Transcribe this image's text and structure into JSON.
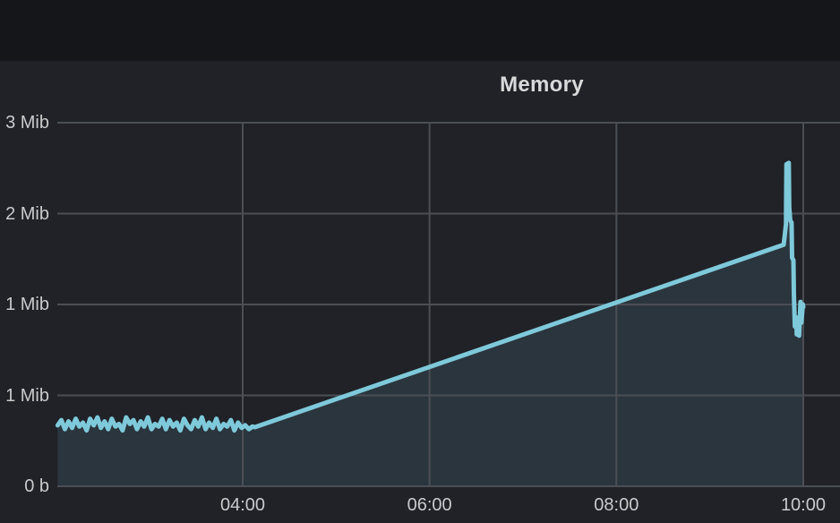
{
  "panel": {
    "title": "Memory"
  },
  "colors": {
    "topbar_bg": "#141619",
    "panel_bg": "#202227",
    "grid": "#4b4f55",
    "line": "#7ec9da",
    "fill": "rgba(126,201,218,0.12)",
    "axis_text": "#c9cacc",
    "title_text": "#d8d9da"
  },
  "chart_data": {
    "type": "area",
    "title": "Memory",
    "grid": true,
    "legend_position": "none",
    "x_axis": {
      "range_hours": [
        2.02,
        10.39
      ],
      "ticks": [
        {
          "hour": 4,
          "label": "04:00"
        },
        {
          "hour": 6,
          "label": "06:00"
        },
        {
          "hour": 8,
          "label": "08:00"
        },
        {
          "hour": 10,
          "label": "10:00"
        }
      ]
    },
    "y_axis": {
      "unit": "bytes (IEC)",
      "range_mib": [
        0,
        2.8
      ],
      "ticks": [
        {
          "mib": 0.0,
          "label": "0 b"
        },
        {
          "mib": 0.7,
          "label": "1 Mib"
        },
        {
          "mib": 1.4,
          "label": "1 Mib"
        },
        {
          "mib": 2.1,
          "label": "2 Mib"
        },
        {
          "mib": 2.8,
          "label": "3 Mib"
        }
      ]
    },
    "series": [
      {
        "name": "Memory",
        "color": "#7ec9da",
        "fill_opacity": 0.12,
        "points_hour_mib": [
          [
            2.02,
            0.47
          ],
          [
            2.059,
            0.51
          ],
          [
            2.097,
            0.44
          ],
          [
            2.136,
            0.5
          ],
          [
            2.174,
            0.45
          ],
          [
            2.213,
            0.52
          ],
          [
            2.252,
            0.46
          ],
          [
            2.29,
            0.49
          ],
          [
            2.329,
            0.43
          ],
          [
            2.367,
            0.52
          ],
          [
            2.406,
            0.47
          ],
          [
            2.445,
            0.53
          ],
          [
            2.483,
            0.45
          ],
          [
            2.522,
            0.5
          ],
          [
            2.56,
            0.44
          ],
          [
            2.599,
            0.52
          ],
          [
            2.638,
            0.46
          ],
          [
            2.676,
            0.48
          ],
          [
            2.715,
            0.43
          ],
          [
            2.753,
            0.53
          ],
          [
            2.792,
            0.48
          ],
          [
            2.831,
            0.51
          ],
          [
            2.869,
            0.44
          ],
          [
            2.908,
            0.5
          ],
          [
            2.946,
            0.46
          ],
          [
            2.985,
            0.53
          ],
          [
            3.024,
            0.44
          ],
          [
            3.062,
            0.48
          ],
          [
            3.101,
            0.46
          ],
          [
            3.139,
            0.52
          ],
          [
            3.178,
            0.44
          ],
          [
            3.217,
            0.51
          ],
          [
            3.255,
            0.46
          ],
          [
            3.294,
            0.49
          ],
          [
            3.332,
            0.43
          ],
          [
            3.371,
            0.52
          ],
          [
            3.41,
            0.47
          ],
          [
            3.448,
            0.44
          ],
          [
            3.487,
            0.51
          ],
          [
            3.525,
            0.46
          ],
          [
            3.564,
            0.53
          ],
          [
            3.603,
            0.44
          ],
          [
            3.641,
            0.49
          ],
          [
            3.68,
            0.45
          ],
          [
            3.718,
            0.52
          ],
          [
            3.757,
            0.44
          ],
          [
            3.796,
            0.48
          ],
          [
            3.834,
            0.46
          ],
          [
            3.873,
            0.51
          ],
          [
            3.911,
            0.43
          ],
          [
            3.95,
            0.49
          ],
          [
            3.989,
            0.45
          ],
          [
            4.027,
            0.47
          ],
          [
            4.066,
            0.44
          ],
          [
            4.104,
            0.46
          ],
          [
            4.13,
            0.455
          ],
          [
            9.79,
            1.86
          ],
          [
            9.8,
            1.92
          ],
          [
            9.815,
            2.02
          ],
          [
            9.82,
            2.48
          ],
          [
            9.845,
            2.49
          ],
          [
            9.85,
            2.15
          ],
          [
            9.86,
            2.05
          ],
          [
            9.875,
            2.03
          ],
          [
            9.88,
            1.76
          ],
          [
            9.895,
            1.74
          ],
          [
            9.9,
            1.48
          ],
          [
            9.91,
            1.23
          ],
          [
            9.925,
            1.3
          ],
          [
            9.93,
            1.17
          ],
          [
            9.945,
            1.2
          ],
          [
            9.955,
            1.16
          ],
          [
            9.97,
            1.42
          ],
          [
            9.98,
            1.26
          ],
          [
            9.995,
            1.4
          ],
          [
            10.0,
            1.38
          ]
        ]
      }
    ]
  }
}
